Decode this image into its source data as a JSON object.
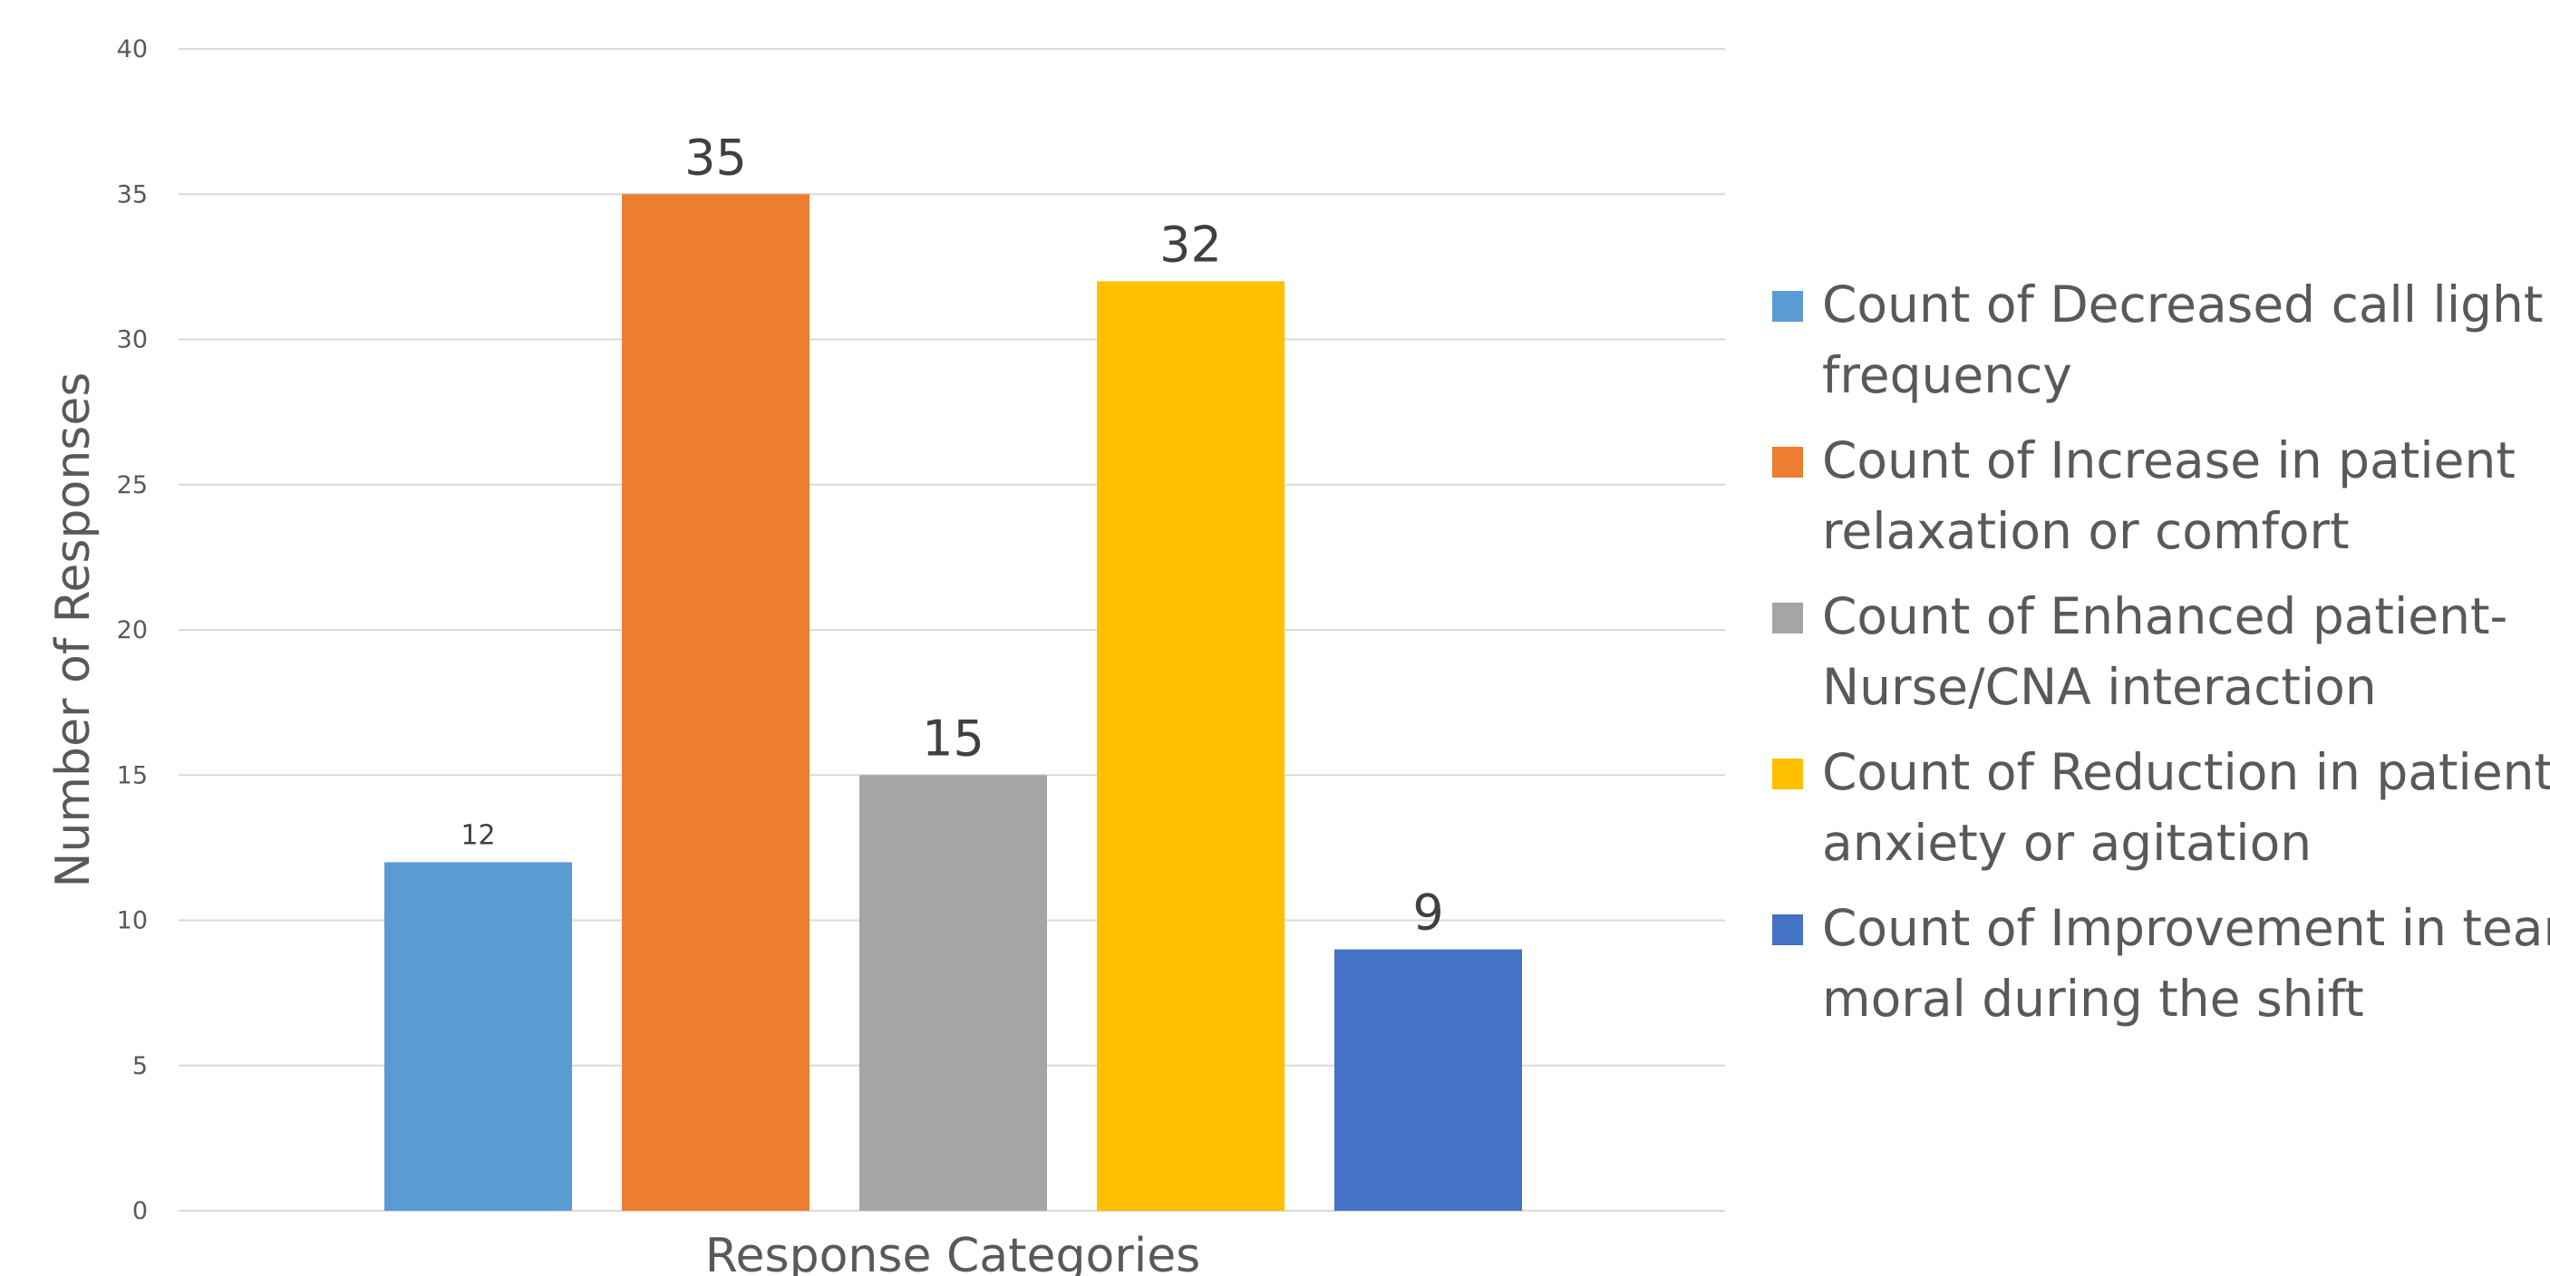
{
  "chart_data": {
    "type": "bar",
    "categories": [
      "Response Categories"
    ],
    "series": [
      {
        "name": "Count of Decreased call light frequency",
        "values": [
          12
        ],
        "color": "#5B9BD5"
      },
      {
        "name": "Count of Increase in patient relaxation or comfort",
        "values": [
          35
        ],
        "color": "#ED7D31"
      },
      {
        "name": "Count of Enhanced patient-Nurse/CNA interaction",
        "values": [
          15
        ],
        "color": "#A5A5A5"
      },
      {
        "name": "Count of Reduction in patient anxiety or agitation",
        "values": [
          32
        ],
        "color": "#FFC000"
      },
      {
        "name": "Count of Improvement in team moral during the shift",
        "values": [
          9
        ],
        "color": "#4472C4"
      }
    ],
    "data_labels": [
      "12",
      "35",
      "15",
      "32",
      "9"
    ],
    "xlabel": "Response Categories",
    "ylabel": "Number of Responses",
    "ylim": [
      0,
      40
    ],
    "yticks": [
      0,
      5,
      10,
      15,
      20,
      25,
      30,
      35,
      40
    ],
    "grid": true,
    "legend_position": "right"
  },
  "legend_lines": [
    [
      "Count of Decreased call light",
      "frequency"
    ],
    [
      "Count of Increase in patient",
      "relaxation or comfort"
    ],
    [
      "Count of Enhanced patient-",
      "Nurse/CNA interaction"
    ],
    [
      "Count of Reduction in patient",
      "anxiety or agitation"
    ],
    [
      "Count of Improvement in team",
      "moral during the shift"
    ]
  ]
}
